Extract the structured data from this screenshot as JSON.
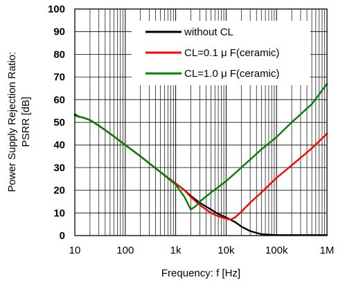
{
  "chart_data": {
    "type": "line",
    "title": "",
    "xlabel": "Frequency: f [Hz]",
    "ylabel_line1": "Power Supply Rejection Ratio:",
    "ylabel_line2": "PSRR [dB]",
    "xscale": "log",
    "xlim": [
      10,
      1000000
    ],
    "ylim": [
      0,
      100
    ],
    "x_ticks": [
      10,
      100,
      1000,
      10000,
      100000,
      1000000
    ],
    "x_tick_labels": [
      "10",
      "100",
      "1k",
      "10k",
      "100k",
      "1M"
    ],
    "y_ticks": [
      0,
      10,
      20,
      30,
      40,
      50,
      60,
      70,
      80,
      90,
      100
    ],
    "y_tick_labels": [
      "0",
      "10",
      "20",
      "30",
      "40",
      "50",
      "60",
      "70",
      "80",
      "90",
      "100"
    ],
    "grid": true,
    "legend_position": "top-right",
    "series": [
      {
        "name": "without CL",
        "color": "#000000",
        "points": [
          [
            10,
            53.5
          ],
          [
            12,
            52.5
          ],
          [
            15,
            52
          ],
          [
            20,
            51
          ],
          [
            30,
            48.5
          ],
          [
            50,
            45
          ],
          [
            100,
            40
          ],
          [
            200,
            35
          ],
          [
            500,
            28
          ],
          [
            1000,
            23
          ],
          [
            1500,
            20
          ],
          [
            2000,
            17.5
          ],
          [
            3000,
            14.5
          ],
          [
            5000,
            11.5
          ],
          [
            7000,
            9.5
          ],
          [
            10000,
            8
          ],
          [
            15000,
            6
          ],
          [
            20000,
            4
          ],
          [
            30000,
            2
          ],
          [
            50000,
            0.6
          ],
          [
            100000,
            0.2
          ],
          [
            1000000,
            0.2
          ]
        ]
      },
      {
        "name": "CL=0.1 μ F(ceramic)",
        "color": "#ff0000",
        "points": [
          [
            10,
            53
          ],
          [
            12,
            52.5
          ],
          [
            15,
            52
          ],
          [
            20,
            51
          ],
          [
            30,
            48.5
          ],
          [
            50,
            45
          ],
          [
            100,
            40
          ],
          [
            200,
            35
          ],
          [
            500,
            28
          ],
          [
            1000,
            23
          ],
          [
            1500,
            20
          ],
          [
            2000,
            17
          ],
          [
            3000,
            13.5
          ],
          [
            5000,
            10
          ],
          [
            7000,
            8.5
          ],
          [
            10000,
            7.5
          ],
          [
            12000,
            7
          ],
          [
            15000,
            8
          ],
          [
            20000,
            10.5
          ],
          [
            30000,
            14.5
          ],
          [
            50000,
            19
          ],
          [
            100000,
            25.5
          ],
          [
            200000,
            31
          ],
          [
            500000,
            38.5
          ],
          [
            1000000,
            45
          ]
        ]
      },
      {
        "name": "CL=1.0 μ F(ceramic)",
        "color": "#008000",
        "points": [
          [
            10,
            53
          ],
          [
            12,
            52.5
          ],
          [
            15,
            52
          ],
          [
            20,
            51
          ],
          [
            30,
            48.5
          ],
          [
            50,
            45
          ],
          [
            100,
            40
          ],
          [
            200,
            35
          ],
          [
            500,
            28
          ],
          [
            1000,
            22.5
          ],
          [
            1500,
            17
          ],
          [
            2000,
            11.5
          ],
          [
            2500,
            13
          ],
          [
            3000,
            15
          ],
          [
            5000,
            19
          ],
          [
            10000,
            24
          ],
          [
            20000,
            30
          ],
          [
            50000,
            38
          ],
          [
            100000,
            43.5
          ],
          [
            200000,
            50
          ],
          [
            500000,
            58
          ],
          [
            1000000,
            67
          ]
        ]
      }
    ]
  }
}
